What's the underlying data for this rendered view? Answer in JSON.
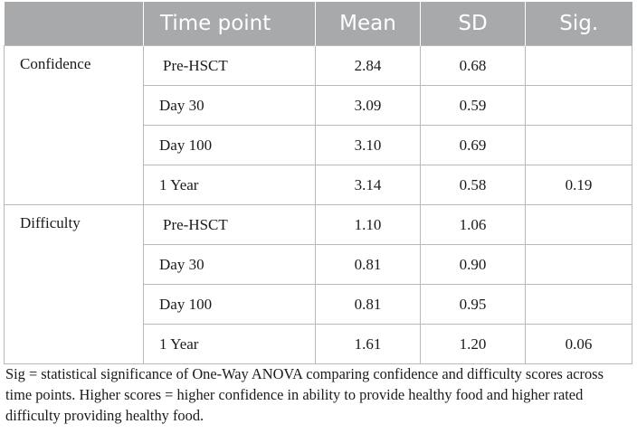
{
  "table": {
    "headers": [
      "",
      "Time point",
      "Mean",
      "SD",
      "Sig."
    ],
    "groups": [
      {
        "label": "Confidence",
        "rows": [
          {
            "time": "Pre-HSCT",
            "mean": "2.84",
            "sd": "0.68",
            "sig": ""
          },
          {
            "time": "Day 30",
            "mean": "3.09",
            "sd": "0.59",
            "sig": ""
          },
          {
            "time": "Day 100",
            "mean": "3.10",
            "sd": "0.69",
            "sig": ""
          },
          {
            "time": "1 Year",
            "mean": "3.14",
            "sd": "0.58",
            "sig": "0.19"
          }
        ]
      },
      {
        "label": "Difficulty",
        "rows": [
          {
            "time": "Pre-HSCT",
            "mean": "1.10",
            "sd": "1.06",
            "sig": ""
          },
          {
            "time": "Day 30",
            "mean": "0.81",
            "sd": "0.90",
            "sig": ""
          },
          {
            "time": "Day 100",
            "mean": "0.81",
            "sd": "0.95",
            "sig": ""
          },
          {
            "time": "1 Year",
            "mean": "1.61",
            "sd": "1.20",
            "sig": "0.06"
          }
        ]
      }
    ]
  },
  "footnote": "Sig = statistical significance of One-Way ANOVA comparing confidence and difficulty scores across time points. Higher scores = higher confidence in ability to provide healthy food and higher rated difficulty providing healthy food."
}
